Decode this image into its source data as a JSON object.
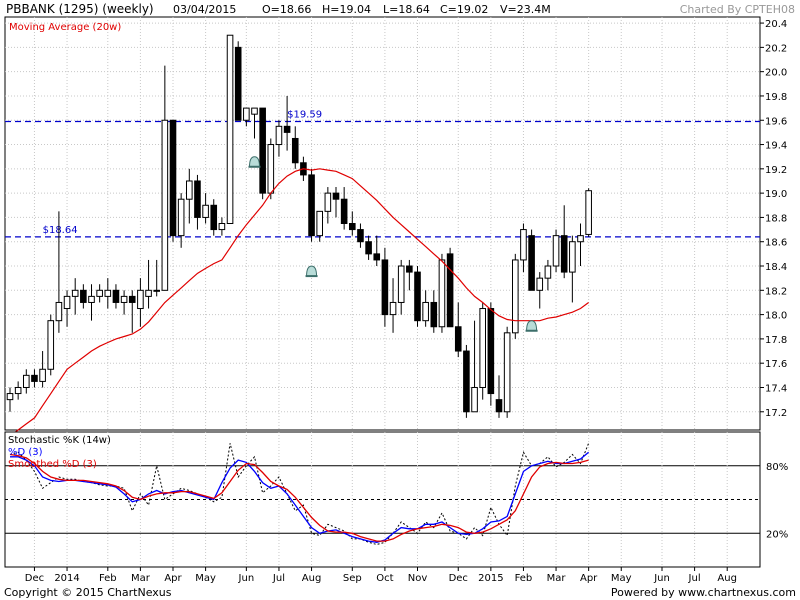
{
  "header": {
    "symbol": "PBBANK (1295) (weekly)",
    "date": "03/04/2015",
    "open": "O=18.66",
    "high": "H=19.04",
    "low": "L=18.64",
    "close": "C=19.02",
    "volume": "V=23.4M",
    "charted_by": "Charted By CPTEH08"
  },
  "footer": {
    "copyright": "Copyright © 2015 ChartNexus",
    "powered": "Powered by www.chartnexus.com"
  },
  "colors": {
    "up": "#ffffff",
    "down": "#000000",
    "ma": "#e00000",
    "k_line": "#0000ff",
    "d_line": "#e00000",
    "raw_k": "#000000",
    "ref_line": "#0000cc",
    "grid": "#c8c8c8"
  },
  "chart_data": [
    {
      "type": "candlestick",
      "legend": "Moving Average (20w)",
      "ylim": [
        17.05,
        20.45
      ],
      "y_ticks": [
        "17.2",
        "17.4",
        "17.6",
        "17.8",
        "18.0",
        "18.2",
        "18.4",
        "18.6",
        "18.8",
        "19.0",
        "19.2",
        "19.4",
        "19.6",
        "19.8",
        "20.0",
        "20.2",
        "20.4"
      ],
      "x_ticks": [
        {
          "label": "Dec",
          "i": 3
        },
        {
          "label": "2014",
          "i": 7
        },
        {
          "label": "Feb",
          "i": 12
        },
        {
          "label": "Mar",
          "i": 16
        },
        {
          "label": "Apr",
          "i": 20
        },
        {
          "label": "May",
          "i": 24
        },
        {
          "label": "Jun",
          "i": 29
        },
        {
          "label": "Jul",
          "i": 33
        },
        {
          "label": "Aug",
          "i": 37
        },
        {
          "label": "Sep",
          "i": 42
        },
        {
          "label": "Oct",
          "i": 46
        },
        {
          "label": "Nov",
          "i": 50
        },
        {
          "label": "Dec",
          "i": 55
        },
        {
          "label": "2015",
          "i": 59
        },
        {
          "label": "Feb",
          "i": 63
        },
        {
          "label": "Mar",
          "i": 67
        },
        {
          "label": "Apr",
          "i": 71
        },
        {
          "label": "May",
          "i": 75
        },
        {
          "label": "Jun",
          "i": 80
        },
        {
          "label": "Jul",
          "i": 84
        },
        {
          "label": "Aug",
          "i": 88
        }
      ],
      "ref_lines": [
        {
          "value": 19.59,
          "label": "$19.59",
          "label_i": 34
        },
        {
          "value": 18.64,
          "label": "$18.64",
          "label_i": 4
        }
      ],
      "alerts": [
        {
          "i": 30,
          "value": 19.25
        },
        {
          "i": 37,
          "value": 18.35
        },
        {
          "i": 64,
          "value": 17.9
        }
      ],
      "candles": [
        [
          17.3,
          17.4,
          17.2,
          17.35
        ],
        [
          17.35,
          17.45,
          17.3,
          17.4
        ],
        [
          17.4,
          17.55,
          17.35,
          17.5
        ],
        [
          17.5,
          17.55,
          17.4,
          17.45
        ],
        [
          17.45,
          17.7,
          17.4,
          17.55
        ],
        [
          17.55,
          18.0,
          17.5,
          17.95
        ],
        [
          17.95,
          18.85,
          17.85,
          18.1
        ],
        [
          18.05,
          18.2,
          17.9,
          18.15
        ],
        [
          18.15,
          18.3,
          18.0,
          18.2
        ],
        [
          18.2,
          18.25,
          18.05,
          18.1
        ],
        [
          18.1,
          18.25,
          17.95,
          18.15
        ],
        [
          18.15,
          18.25,
          18.1,
          18.2
        ],
        [
          18.15,
          18.3,
          18.05,
          18.2
        ],
        [
          18.2,
          18.25,
          18.05,
          18.1
        ],
        [
          18.1,
          18.2,
          18.0,
          18.15
        ],
        [
          18.15,
          18.2,
          17.85,
          18.1
        ],
        [
          18.05,
          18.3,
          17.9,
          18.2
        ],
        [
          18.15,
          18.45,
          18.05,
          18.2
        ],
        [
          18.2,
          18.45,
          18.15,
          18.2
        ],
        [
          18.2,
          20.05,
          18.2,
          19.6
        ],
        [
          19.6,
          19.6,
          18.6,
          18.65
        ],
        [
          18.65,
          19.0,
          18.55,
          18.95
        ],
        [
          18.95,
          19.2,
          18.75,
          19.1
        ],
        [
          19.1,
          19.15,
          18.7,
          18.8
        ],
        [
          18.8,
          19.0,
          18.75,
          18.9
        ],
        [
          18.9,
          18.95,
          18.65,
          18.7
        ],
        [
          18.7,
          18.8,
          18.65,
          18.75
        ],
        [
          18.75,
          20.3,
          18.75,
          20.3
        ],
        [
          20.2,
          20.25,
          19.6,
          19.6
        ],
        [
          19.6,
          19.7,
          19.55,
          19.7
        ],
        [
          19.65,
          19.7,
          19.45,
          19.7
        ],
        [
          19.7,
          19.7,
          18.95,
          19.0
        ],
        [
          19.0,
          19.45,
          18.95,
          19.4
        ],
        [
          19.4,
          19.6,
          19.3,
          19.55
        ],
        [
          19.55,
          19.8,
          19.35,
          19.5
        ],
        [
          19.45,
          19.55,
          19.2,
          19.25
        ],
        [
          19.25,
          19.3,
          19.1,
          19.15
        ],
        [
          19.15,
          19.2,
          18.6,
          18.65
        ],
        [
          18.65,
          18.85,
          18.6,
          18.85
        ],
        [
          18.85,
          19.05,
          18.75,
          19.0
        ],
        [
          19.0,
          19.05,
          18.8,
          18.95
        ],
        [
          18.95,
          19.05,
          18.7,
          18.75
        ],
        [
          18.75,
          18.85,
          18.65,
          18.7
        ],
        [
          18.7,
          18.75,
          18.55,
          18.6
        ],
        [
          18.6,
          18.65,
          18.45,
          18.5
        ],
        [
          18.5,
          18.65,
          18.4,
          18.45
        ],
        [
          18.45,
          18.55,
          17.9,
          18.0
        ],
        [
          18.0,
          18.3,
          17.85,
          18.1
        ],
        [
          18.1,
          18.45,
          18.0,
          18.4
        ],
        [
          18.4,
          18.45,
          18.2,
          18.35
        ],
        [
          18.35,
          18.4,
          17.9,
          17.95
        ],
        [
          17.95,
          18.2,
          17.9,
          18.1
        ],
        [
          18.1,
          18.2,
          17.85,
          17.9
        ],
        [
          17.9,
          18.5,
          17.85,
          18.45
        ],
        [
          18.5,
          18.55,
          17.9,
          17.9
        ],
        [
          17.9,
          18.1,
          17.65,
          17.7
        ],
        [
          17.7,
          17.75,
          17.15,
          17.2
        ],
        [
          17.2,
          17.95,
          17.2,
          17.4
        ],
        [
          17.4,
          18.1,
          17.3,
          18.05
        ],
        [
          18.05,
          18.1,
          17.25,
          17.35
        ],
        [
          17.3,
          17.5,
          17.15,
          17.2
        ],
        [
          17.2,
          17.9,
          17.15,
          17.85
        ],
        [
          17.85,
          18.5,
          17.8,
          18.45
        ],
        [
          18.45,
          18.75,
          18.35,
          18.7
        ],
        [
          18.65,
          18.7,
          18.2,
          18.2
        ],
        [
          18.2,
          18.35,
          18.05,
          18.3
        ],
        [
          18.3,
          18.45,
          18.2,
          18.4
        ],
        [
          18.4,
          18.7,
          18.35,
          18.65
        ],
        [
          18.65,
          18.9,
          18.3,
          18.35
        ],
        [
          18.35,
          18.65,
          18.1,
          18.6
        ],
        [
          18.6,
          18.75,
          18.4,
          18.65
        ],
        [
          18.66,
          19.04,
          18.64,
          19.02
        ]
      ],
      "ma": [
        17.0,
        17.05,
        17.1,
        17.15,
        17.25,
        17.35,
        17.45,
        17.55,
        17.6,
        17.65,
        17.7,
        17.74,
        17.77,
        17.8,
        17.82,
        17.84,
        17.88,
        17.94,
        18.02,
        18.1,
        18.16,
        18.22,
        18.28,
        18.34,
        18.38,
        18.42,
        18.45,
        18.55,
        18.65,
        18.74,
        18.82,
        18.9,
        19.0,
        19.08,
        19.14,
        19.18,
        19.2,
        19.19,
        19.2,
        19.19,
        19.18,
        19.15,
        19.12,
        19.06,
        19.0,
        18.94,
        18.87,
        18.8,
        18.74,
        18.68,
        18.62,
        18.56,
        18.5,
        18.44,
        18.37,
        18.3,
        18.22,
        18.15,
        18.1,
        18.04,
        17.99,
        17.96,
        17.95,
        17.95,
        17.95,
        17.95,
        17.97,
        17.98,
        18.0,
        18.02,
        18.05,
        18.1
      ]
    },
    {
      "type": "line",
      "title": "Stochastic %K (14w)",
      "legend": [
        "%D (3)",
        "Smoothed %D (3)"
      ],
      "ylim": [
        -10,
        110
      ],
      "levels": [
        80,
        50,
        20
      ],
      "y_ticks": [
        "80%",
        "20%"
      ],
      "series": [
        {
          "name": "Stochastic %K (14w)",
          "style": "dotted",
          "values": [
            90,
            92,
            85,
            75,
            60,
            65,
            70,
            68,
            68,
            66,
            65,
            63,
            62,
            62,
            60,
            40,
            55,
            45,
            80,
            50,
            55,
            60,
            58,
            55,
            52,
            48,
            52,
            100,
            70,
            80,
            88,
            56,
            62,
            70,
            55,
            40,
            45,
            20,
            18,
            28,
            25,
            22,
            15,
            15,
            12,
            10,
            12,
            20,
            30,
            25,
            20,
            30,
            25,
            38,
            22,
            20,
            15,
            25,
            18,
            43,
            28,
            18,
            62,
            92,
            80,
            82,
            88,
            79,
            83,
            90,
            82,
            100
          ]
        },
        {
          "name": "%D (3)",
          "style": "solid",
          "values": [
            88,
            88,
            85,
            80,
            70,
            67,
            66,
            67,
            67,
            66,
            65,
            64,
            63,
            61,
            55,
            48,
            50,
            55,
            58,
            55,
            57,
            58,
            56,
            54,
            52,
            50,
            65,
            78,
            85,
            83,
            75,
            65,
            60,
            62,
            55,
            45,
            35,
            25,
            20,
            22,
            23,
            20,
            17,
            15,
            13,
            12,
            14,
            20,
            25,
            24,
            24,
            28,
            28,
            30,
            25,
            20,
            19,
            20,
            24,
            30,
            31,
            35,
            55,
            75,
            80,
            82,
            84,
            82,
            82,
            84,
            86,
            92
          ]
        },
        {
          "name": "Smoothed %D (3)",
          "style": "solid",
          "values": [
            90,
            89,
            87,
            82,
            75,
            70,
            68,
            67,
            67,
            67,
            66,
            65,
            64,
            62,
            58,
            52,
            50,
            53,
            55,
            56,
            56,
            57,
            57,
            55,
            53,
            51,
            56,
            66,
            76,
            82,
            81,
            74,
            66,
            62,
            59,
            52,
            43,
            34,
            27,
            22,
            21,
            21,
            20,
            17,
            15,
            13,
            13,
            15,
            19,
            22,
            24,
            25,
            26,
            28,
            27,
            25,
            21,
            20,
            21,
            24,
            28,
            32,
            40,
            55,
            70,
            79,
            82,
            83,
            82,
            82,
            83,
            85
          ]
        }
      ],
      "x_ticks_same_as_price": true
    }
  ]
}
